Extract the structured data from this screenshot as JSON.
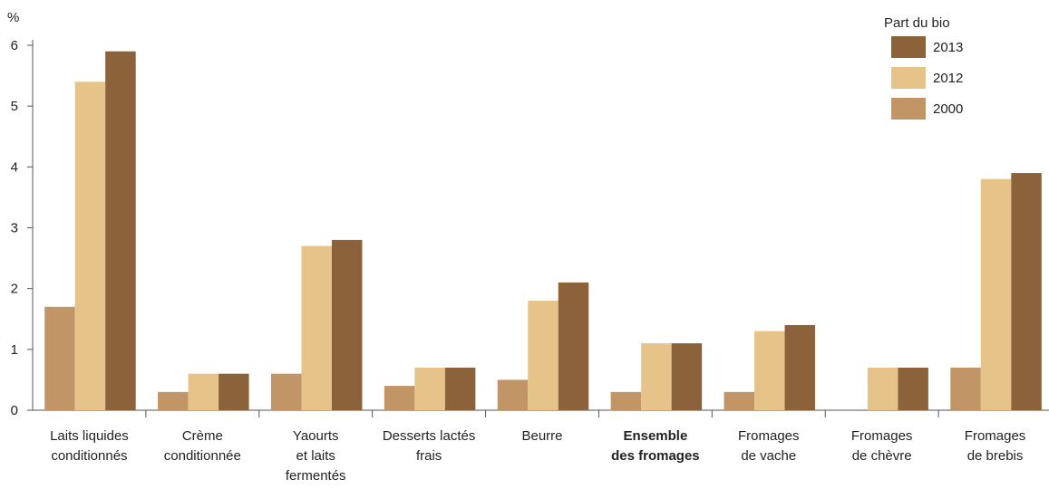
{
  "chart_data": {
    "type": "bar",
    "ylabel": "%",
    "ylim": [
      0,
      6
    ],
    "yticks": [
      0,
      1,
      2,
      3,
      4,
      5,
      6
    ],
    "legend_title": "Part du bio",
    "legend_position": "top-right",
    "grid": false,
    "categories": [
      [
        "Laits liquides",
        "conditionnés"
      ],
      [
        "Crème",
        "conditionnée"
      ],
      [
        "Yaourts",
        "et laits",
        "fermentés"
      ],
      [
        "Desserts lactés",
        "frais"
      ],
      [
        "Beurre"
      ],
      [
        "Ensemble",
        "des fromages"
      ],
      [
        "Fromages",
        "de vache"
      ],
      [
        "Fromages",
        "de chèvre"
      ],
      [
        "Fromages",
        "de brebis"
      ]
    ],
    "bold_categories": [
      5
    ],
    "series": [
      {
        "name": "2000",
        "color": "#c29566",
        "values": [
          1.7,
          0.3,
          0.6,
          0.4,
          0.5,
          0.3,
          0.3,
          null,
          0.7
        ]
      },
      {
        "name": "2012",
        "color": "#e6c489",
        "values": [
          5.4,
          0.6,
          2.7,
          0.7,
          1.8,
          1.1,
          1.3,
          0.7,
          3.8
        ]
      },
      {
        "name": "2013",
        "color": "#8b6239",
        "values": [
          5.9,
          0.6,
          2.8,
          0.7,
          2.1,
          1.1,
          1.4,
          0.7,
          3.9
        ]
      }
    ],
    "legend_order": [
      "2013",
      "2012",
      "2000"
    ]
  }
}
